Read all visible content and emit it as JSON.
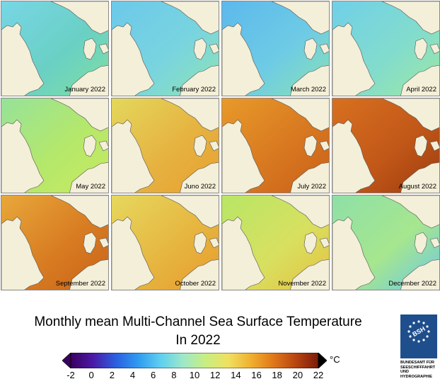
{
  "panels": [
    {
      "label": "January 2022",
      "sea": "#78d6e6",
      "sea2": "#6ad0c4",
      "coast": "#7fe0a0"
    },
    {
      "label": "February 2022",
      "sea": "#6cc9ea",
      "sea2": "#79d4df",
      "coast": "#8fe5b0"
    },
    {
      "label": "March 2022",
      "sea": "#5cb9ec",
      "sea2": "#6ecbe5",
      "coast": "#8ae3b0"
    },
    {
      "label": "April 2022",
      "sea": "#70d0e8",
      "sea2": "#82dccd",
      "coast": "#9ee8a0"
    },
    {
      "label": "May 2022",
      "sea": "#96e29a",
      "sea2": "#b5e86a",
      "coast": "#c8ea60"
    },
    {
      "label": "Juno 2022",
      "sea": "#e4d85c",
      "sea2": "#e6b240",
      "coast": "#e8a030"
    },
    {
      "label": "July 2022",
      "sea": "#e89a2a",
      "sea2": "#d87820",
      "coast": "#c85e18"
    },
    {
      "label": "August 2022",
      "sea": "#d87020",
      "sea2": "#c25818",
      "coast": "#9c3a10"
    },
    {
      "label": "September 2022",
      "sea": "#e8a83a",
      "sea2": "#d87c22",
      "coast": "#c86218"
    },
    {
      "label": "October 2022",
      "sea": "#e6d85e",
      "sea2": "#e6b640",
      "coast": "#e89a2c"
    },
    {
      "label": "November 2022",
      "sea": "#b8e666",
      "sea2": "#d8e060",
      "coast": "#e6c040"
    },
    {
      "label": "December 2022",
      "sea": "#8ee0a8",
      "sea2": "#a6e68e",
      "coast": "#6ac8e8"
    }
  ],
  "colors": {
    "land": "#f4efd8",
    "coastline": "#555555",
    "scale": [
      "#3a0060",
      "#4b1aa8",
      "#2a5fe0",
      "#2f9bf0",
      "#5fd0f0",
      "#9ee8c8",
      "#c8ee80",
      "#f0e060",
      "#f0b030",
      "#e07818",
      "#b84410",
      "#7a1c08"
    ]
  },
  "title": {
    "line1": "Monthly mean Multi-Channel Sea Surface Temperature",
    "line2": "In 2022"
  },
  "colorbar": {
    "ticks": [
      "-2",
      "0",
      "2",
      "4",
      "6",
      "8",
      "10",
      "12",
      "14",
      "16",
      "18",
      "20",
      "22"
    ],
    "unit": "°C"
  },
  "logo": {
    "icon": "bsh-logo-icon",
    "text_lines": [
      "BUNDESAMT FÜR",
      "SEESCHIFFFAHRT",
      "UND",
      "HYDROGRAPHIE"
    ]
  }
}
